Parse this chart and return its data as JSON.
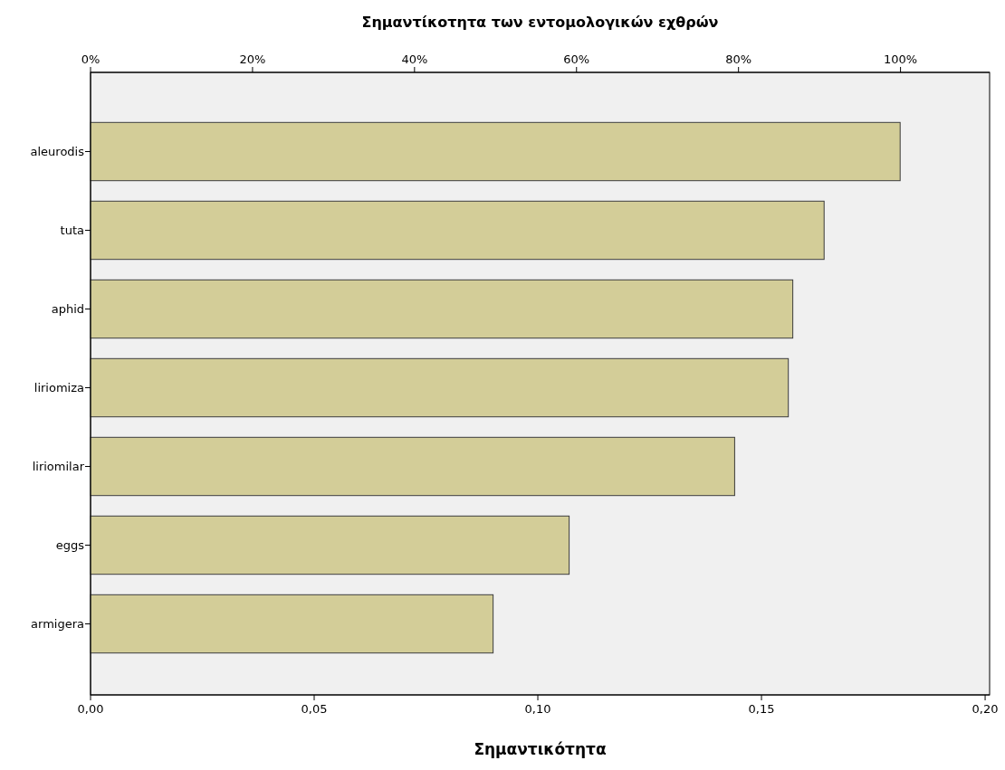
{
  "chart_data": {
    "type": "bar",
    "orientation": "horizontal",
    "title": "Σημαντίκοτητα των εντομολογικών εχθρών",
    "xlabel": "Σημαντικότητα",
    "categories": [
      "aleurodis",
      "tuta",
      "aphid",
      "liriomiza",
      "liriomilar",
      "eggs",
      "armigera"
    ],
    "values": [
      0.181,
      0.164,
      0.157,
      0.156,
      0.144,
      0.107,
      0.09
    ],
    "color": "#d3cd98",
    "xlim": [
      0,
      0.201
    ],
    "xticks": [
      {
        "value": 0,
        "label": "0,00"
      },
      {
        "value": 0.05,
        "label": "0,05"
      },
      {
        "value": 0.1,
        "label": "0,10"
      },
      {
        "value": 0.15,
        "label": "0,15"
      },
      {
        "value": 0.2,
        "label": "0,20"
      }
    ],
    "x2lim": [
      0,
      111
    ],
    "x2ticks": [
      {
        "value": 0,
        "label": "0%"
      },
      {
        "value": 20,
        "label": "20%"
      },
      {
        "value": 40,
        "label": "40%"
      },
      {
        "value": 60,
        "label": "60%"
      },
      {
        "value": 80,
        "label": "80%"
      },
      {
        "value": 100,
        "label": "100%"
      }
    ],
    "grid": false
  }
}
